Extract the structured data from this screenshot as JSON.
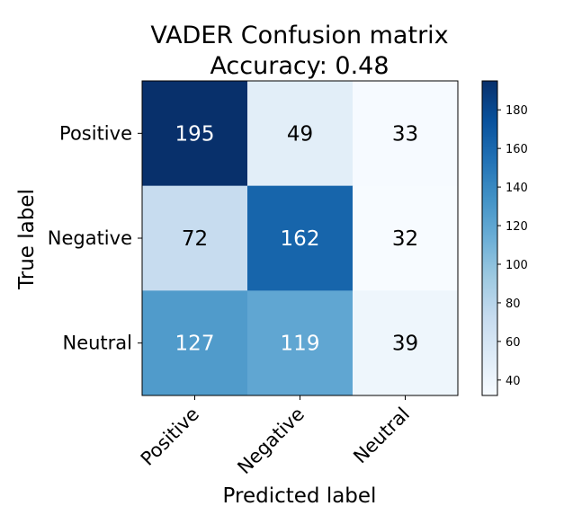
{
  "chart_data": {
    "type": "heatmap",
    "title": "VADER Confusion matrix",
    "subtitle": "Accuracy: 0.48",
    "xlabel": "Predicted label",
    "ylabel": "True label",
    "x_categories": [
      "Positive",
      "Negative",
      "Neutral"
    ],
    "y_categories": [
      "Positive",
      "Negative",
      "Neutral"
    ],
    "values": [
      [
        195,
        49,
        33
      ],
      [
        72,
        162,
        32
      ],
      [
        127,
        119,
        39
      ]
    ],
    "colormap": "Blues",
    "color_range": [
      32,
      195
    ],
    "colorbar_ticks": [
      40,
      60,
      80,
      100,
      120,
      140,
      160,
      180
    ],
    "text_colors": {
      "light": "#ffffff",
      "dark": "#000000"
    },
    "grid": false
  }
}
